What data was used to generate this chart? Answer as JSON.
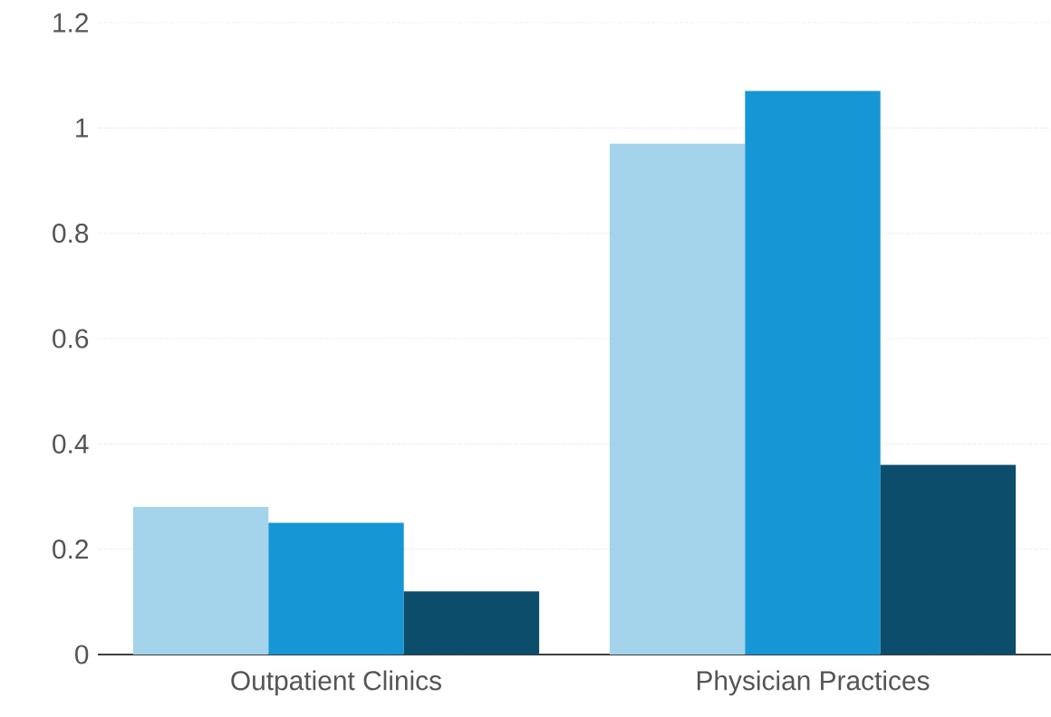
{
  "chart_data": {
    "type": "bar",
    "categories": [
      "Outpatient Clinics",
      "Physician Practices"
    ],
    "series": [
      {
        "color": "#a3d4eb",
        "values": [
          0.28,
          0.97
        ]
      },
      {
        "color": "#1696d4",
        "values": [
          0.25,
          1.07
        ]
      },
      {
        "color": "#0b4d6b",
        "values": [
          0.12,
          0.36
        ]
      }
    ],
    "ylim": [
      0,
      1.2
    ],
    "yticks": [
      0,
      0.2,
      0.4,
      0.6,
      0.8,
      1,
      1.2
    ],
    "grid": "y"
  }
}
